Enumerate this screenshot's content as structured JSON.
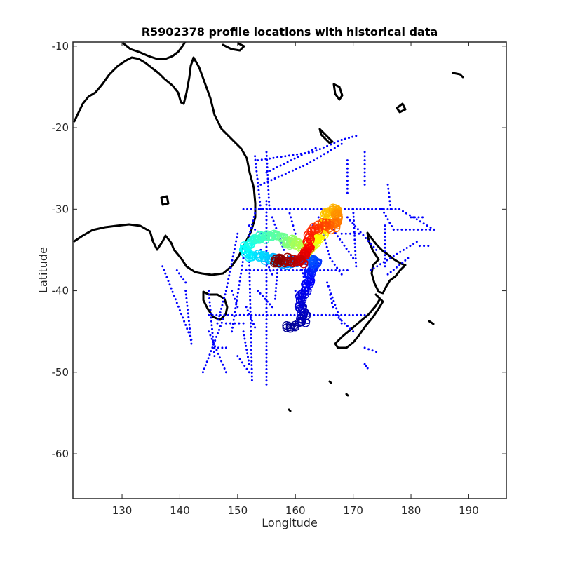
{
  "chart_data": {
    "type": "scatter",
    "title": "R5902378 profile locations with historical data",
    "xlabel": "Longitude",
    "ylabel": "Latitude",
    "xlim": [
      121.5,
      196.5
    ],
    "ylim": [
      -65.5,
      -9.5
    ],
    "xticks": [
      130,
      140,
      150,
      160,
      170,
      180,
      190
    ],
    "yticks": [
      -10,
      -20,
      -30,
      -40,
      -50,
      -60
    ],
    "grid": false,
    "colors": {
      "historical": "#0000ff",
      "coast": "#000000",
      "profile_colormap": [
        "#00008f",
        "#0000ff",
        "#0080ff",
        "#00ffff",
        "#80ff80",
        "#ffff00",
        "#ff8000",
        "#ff0000",
        "#800000"
      ]
    },
    "series": [
      {
        "role": "historical",
        "marker": "dot",
        "tracks": [
          [
            [
              153.5,
              -24
            ],
            [
              163,
              -23
            ],
            [
              168,
              -21.5
            ],
            [
              170.5,
              -21
            ]
          ],
          [
            [
              154,
              -27
            ],
            [
              162,
              -24.5
            ],
            [
              168,
              -22
            ]
          ],
          [
            [
              155,
              -25.5
            ],
            [
              163.5,
              -22.5
            ]
          ],
          [
            [
              153,
              -23.5
            ],
            [
              154,
              -30
            ]
          ],
          [
            [
              155,
              -23
            ],
            [
              155.5,
              -30
            ]
          ],
          [
            [
              151,
              -30
            ],
            [
              178,
              -30
            ],
            [
              184,
              -32.5
            ]
          ],
          [
            [
              153,
              -30.5
            ],
            [
              151,
              -36
            ],
            [
              149,
              -45
            ]
          ],
          [
            [
              150,
              -33
            ],
            [
              148,
              -40
            ],
            [
              146.5,
              -44
            ]
          ],
          [
            [
              155,
              -29
            ],
            [
              155,
              -51.5
            ]
          ],
          [
            [
              152,
              -36
            ],
            [
              152.5,
              -51
            ]
          ],
          [
            [
              153.5,
              -40
            ],
            [
              156,
              -42
            ]
          ],
          [
            [
              145,
              -43
            ],
            [
              172,
              -43
            ]
          ],
          [
            [
              151.5,
              -37.5
            ],
            [
              169,
              -37.5
            ]
          ],
          [
            [
              145,
              -40
            ],
            [
              146,
              -48
            ]
          ],
          [
            [
              144,
              -50
            ],
            [
              147.5,
              -43.5
            ]
          ],
          [
            [
              145,
              -45
            ],
            [
              148,
              -50
            ]
          ],
          [
            [
              164,
              -31
            ],
            [
              166,
              -36
            ],
            [
              168,
              -38
            ]
          ],
          [
            [
              165,
              -31
            ],
            [
              170,
              -36
            ]
          ],
          [
            [
              169,
              -31
            ],
            [
              174,
              -35
            ]
          ],
          [
            [
              175,
              -30
            ],
            [
              177,
              -32.5
            ]
          ],
          [
            [
              177,
              -32.5
            ],
            [
              184,
              -32.5
            ]
          ],
          [
            [
              170,
              -30
            ],
            [
              170.5,
              -37
            ]
          ],
          [
            [
              175.5,
              -32
            ],
            [
              175.5,
              -37
            ]
          ],
          [
            [
              181,
              -34
            ],
            [
              173,
              -37.5
            ]
          ],
          [
            [
              179.5,
              -36
            ],
            [
              176,
              -38
            ]
          ],
          [
            [
              157,
              -36.5
            ],
            [
              156.5,
              -41
            ]
          ],
          [
            [
              137,
              -37
            ],
            [
              142,
              -46
            ]
          ],
          [
            [
              139.5,
              -37.5
            ],
            [
              141,
              -39
            ]
          ],
          [
            [
              141,
              -40
            ],
            [
              142,
              -46.5
            ]
          ],
          [
            [
              151.5,
              -42
            ],
            [
              153,
              -44.5
            ]
          ],
          [
            [
              151,
              -45
            ],
            [
              152,
              -49
            ]
          ],
          [
            [
              165.5,
              -39
            ],
            [
              168,
              -44
            ]
          ],
          [
            [
              167,
              -43
            ],
            [
              170,
              -45
            ]
          ],
          [
            [
              172,
              -47
            ],
            [
              174,
              -47.5
            ]
          ],
          [
            [
              172,
              -49
            ],
            [
              172.5,
              -49.5
            ]
          ],
          [
            [
              163,
              -32
            ],
            [
              165,
              -33
            ]
          ],
          [
            [
              168,
              -33
            ],
            [
              171,
              -33
            ]
          ],
          [
            [
              160,
              -40
            ],
            [
              161,
              -42
            ]
          ],
          [
            [
              181.5,
              -34.5
            ],
            [
              183,
              -34.5
            ]
          ],
          [
            [
              176,
              -27
            ],
            [
              176.5,
              -30
            ]
          ],
          [
            [
              169,
              -24
            ],
            [
              169,
              -28
            ]
          ],
          [
            [
              172,
              -23
            ],
            [
              172,
              -27
            ]
          ],
          [
            [
              180,
              -31
            ],
            [
              182,
              -31
            ]
          ],
          [
            [
              154,
              -35
            ],
            [
              156,
              -38
            ]
          ],
          [
            [
              156,
              -31
            ],
            [
              158,
              -35
            ]
          ],
          [
            [
              159,
              -30.5
            ],
            [
              160,
              -33
            ]
          ],
          [
            [
              148,
              -44
            ],
            [
              151,
              -44
            ]
          ],
          [
            [
              149,
              -40
            ],
            [
              150,
              -42
            ]
          ],
          [
            [
              146,
              -47
            ],
            [
              148,
              -47
            ]
          ],
          [
            [
              152,
              -32
            ],
            [
              154,
              -33
            ]
          ],
          [
            [
              161,
              -37
            ],
            [
              162,
              -40
            ]
          ],
          [
            [
              166,
              -40.5
            ],
            [
              166.5,
              -42
            ]
          ],
          [
            [
              150,
              -48
            ],
            [
              152,
              -50
            ]
          ]
        ]
      },
      {
        "role": "profiles",
        "marker": "circle-numbered",
        "path": [
          [
            158.5,
            -44.5
          ],
          [
            160.5,
            -44.2
          ],
          [
            161.5,
            -43.5
          ],
          [
            161.2,
            -42.2
          ],
          [
            160.8,
            -41.2
          ],
          [
            161.6,
            -40.2
          ],
          [
            162.1,
            -39
          ],
          [
            162.4,
            -38
          ],
          [
            163.3,
            -37
          ],
          [
            163.6,
            -36.4
          ],
          [
            162.8,
            -36.6
          ],
          [
            161.5,
            -36.2
          ],
          [
            160.2,
            -36.3
          ],
          [
            158.8,
            -36.7
          ],
          [
            157.5,
            -36.4
          ],
          [
            156.2,
            -36.2
          ],
          [
            155,
            -36
          ],
          [
            153.5,
            -35.8
          ],
          [
            151.5,
            -35.6
          ],
          [
            151.3,
            -34.8
          ],
          [
            152.6,
            -34.2
          ],
          [
            153.4,
            -33.4
          ],
          [
            155,
            -33.4
          ],
          [
            156.2,
            -33.1
          ],
          [
            157.8,
            -33.5
          ],
          [
            158.8,
            -34.3
          ],
          [
            159.5,
            -33.9
          ],
          [
            160.4,
            -34.4
          ],
          [
            161.6,
            -35.1
          ],
          [
            162.8,
            -34.7
          ],
          [
            163.4,
            -33.9
          ],
          [
            164.2,
            -33.8
          ],
          [
            164.9,
            -32.6
          ],
          [
            165.3,
            -31.6
          ],
          [
            165.6,
            -30.4
          ],
          [
            166.4,
            -30.1
          ],
          [
            167.2,
            -30.3
          ],
          [
            167.4,
            -31.2
          ],
          [
            166.9,
            -32
          ],
          [
            166.1,
            -32.3
          ],
          [
            164.9,
            -31.8
          ],
          [
            163.6,
            -32.3
          ],
          [
            162.4,
            -33.1
          ],
          [
            162,
            -34.2
          ],
          [
            162.1,
            -35.3
          ],
          [
            161.7,
            -35.8
          ],
          [
            161.1,
            -36.4
          ],
          [
            159.9,
            -36.4
          ],
          [
            158.6,
            -36.2
          ],
          [
            157.2,
            -36.3
          ],
          [
            156.5,
            -36.4
          ]
        ]
      }
    ]
  }
}
